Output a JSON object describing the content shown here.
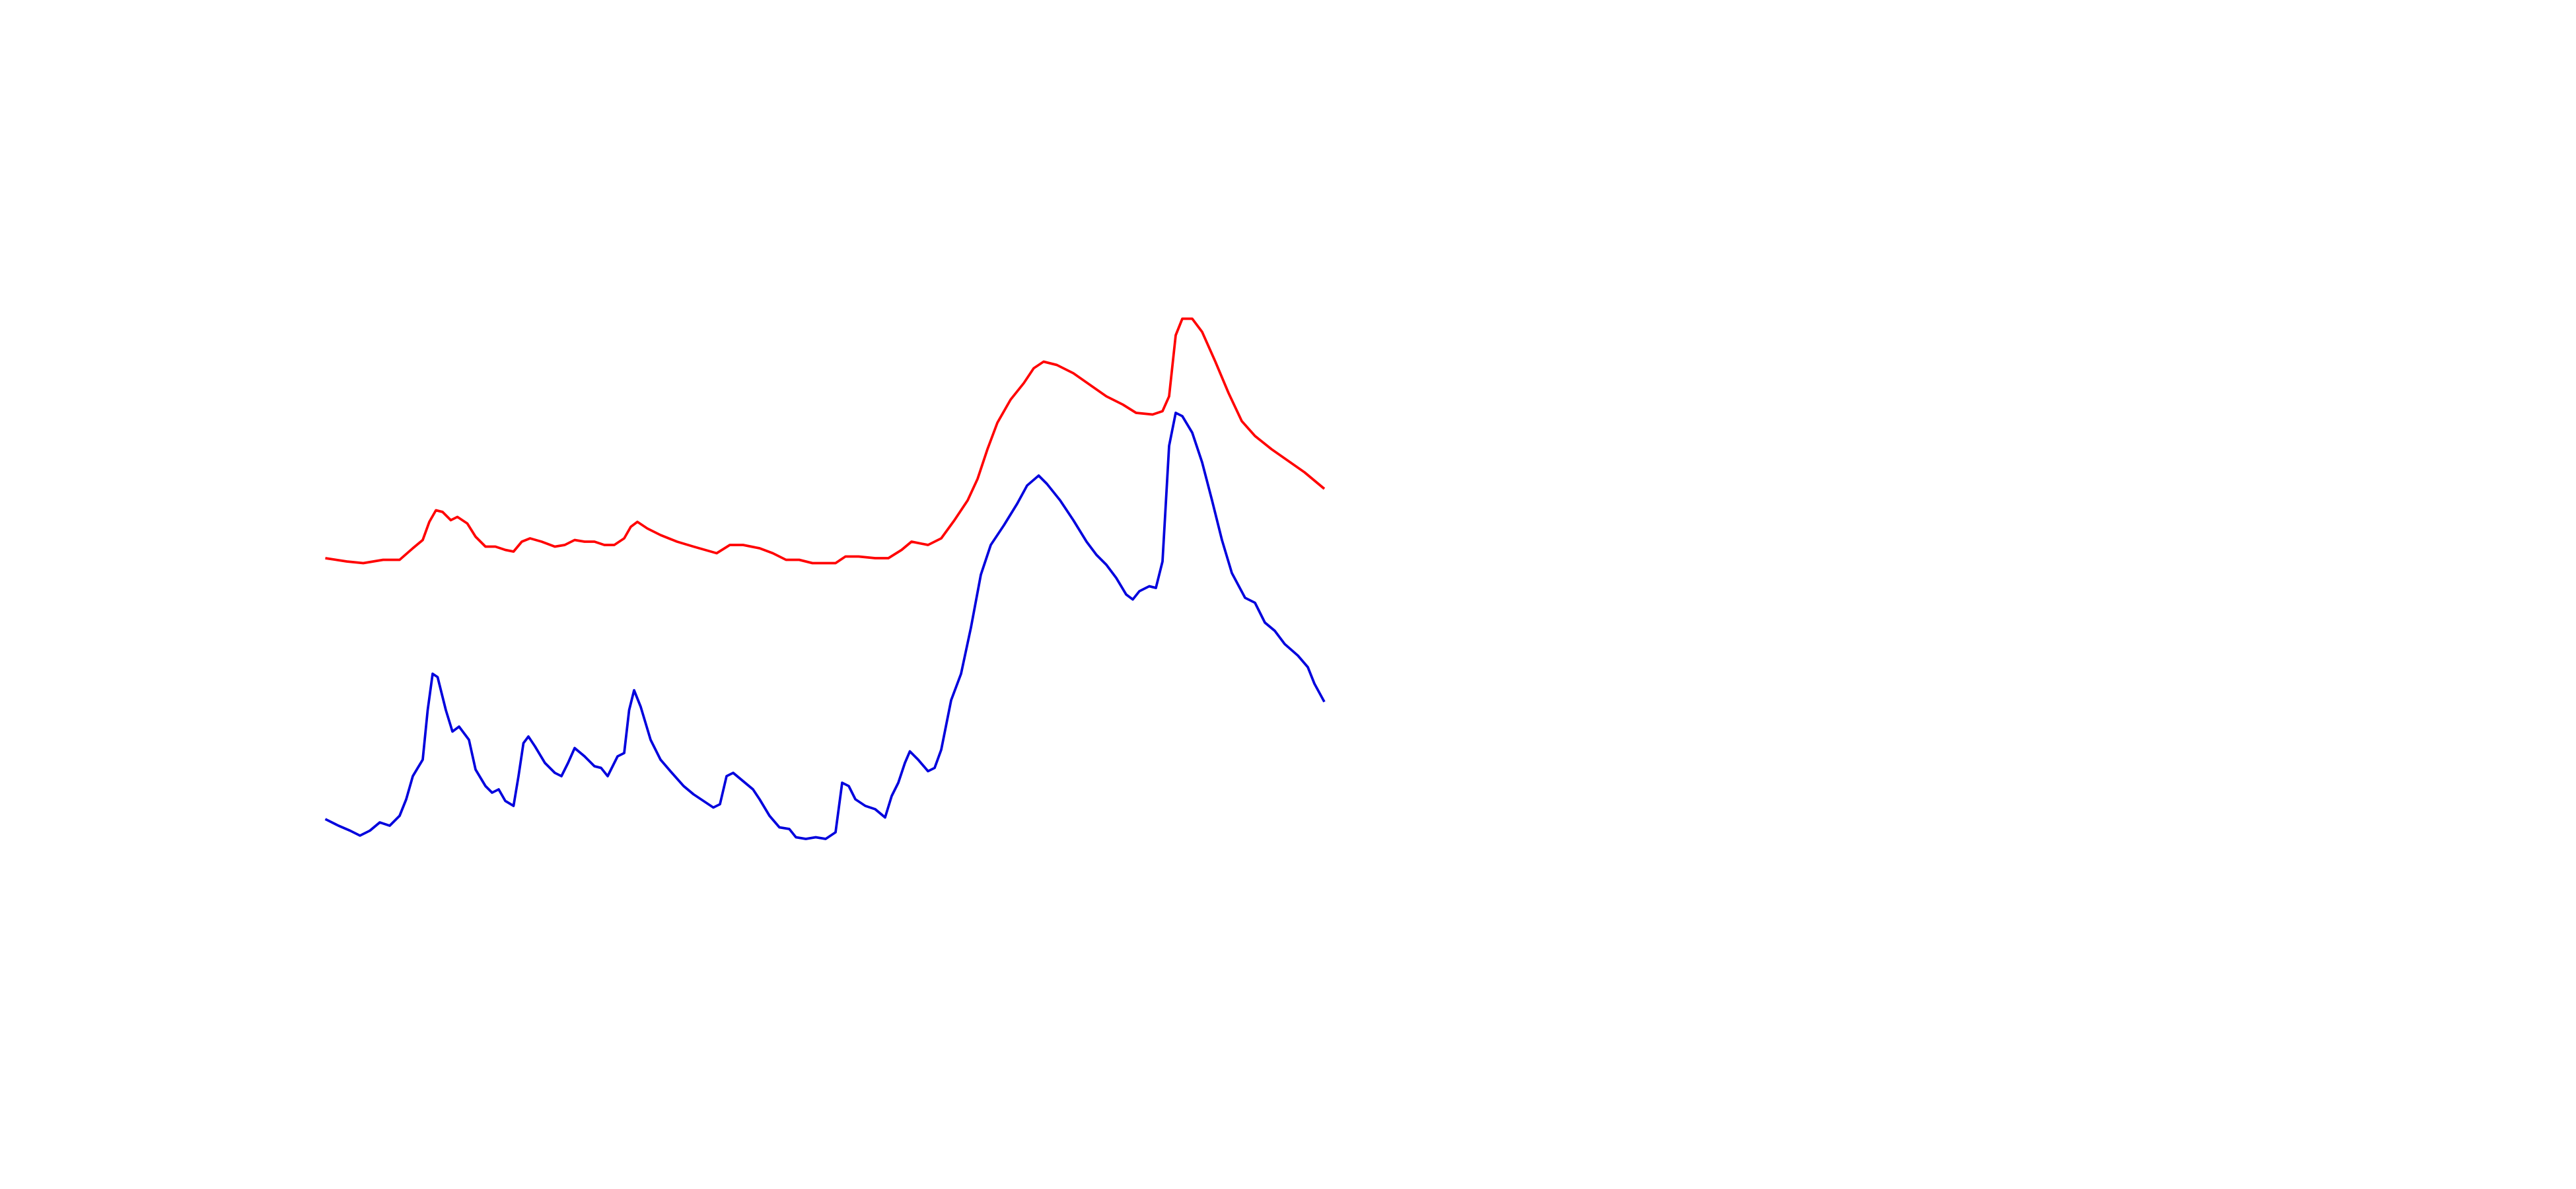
{
  "chart_data": {
    "type": "line",
    "xlim": [
      0,
      1560
    ],
    "ylim": [
      0,
      720
    ],
    "series": [
      {
        "color": "#ff0000",
        "x": [
          197,
          210,
          220,
          232,
          242,
          250,
          256,
          260,
          264,
          268,
          273,
          277,
          283,
          288,
          294,
          300,
          306,
          311,
          316,
          321,
          328,
          336,
          342,
          348,
          354,
          360,
          366,
          372,
          378,
          382,
          386,
          392,
          400,
          410,
          420,
          434,
          442,
          450,
          460,
          468,
          476,
          484,
          492,
          500,
          506,
          512,
          520,
          530,
          538,
          546,
          552,
          562,
          570,
          578,
          586,
          592,
          598,
          604,
          612,
          620,
          626,
          632,
          640,
          650,
          660,
          670,
          680,
          688,
          698,
          704,
          708,
          712,
          716,
          722,
          728,
          736,
          744,
          752,
          760,
          770,
          780,
          790,
          802
        ],
        "values": [
          382,
          380,
          379,
          381,
          381,
          388,
          393,
          404,
          411,
          410,
          405,
          407,
          403,
          395,
          389,
          389,
          387,
          386,
          392,
          394,
          392,
          389,
          390,
          393,
          392,
          392,
          390,
          390,
          394,
          401,
          404,
          400,
          396,
          392,
          389,
          385,
          390,
          390,
          388,
          385,
          381,
          381,
          379,
          379,
          379,
          383,
          383,
          382,
          382,
          387,
          392,
          390,
          394,
          405,
          417,
          430,
          448,
          464,
          478,
          488,
          497,
          501,
          499,
          494,
          487,
          480,
          475,
          470,
          469,
          471,
          480,
          517,
          527,
          527,
          519,
          501,
          482,
          465,
          456,
          448,
          441,
          434,
          424
        ]
      },
      {
        "color": "#0000dd",
        "x": [
          197,
          205,
          212,
          218,
          224,
          230,
          236,
          242,
          246,
          250,
          256,
          259,
          262,
          265,
          270,
          274,
          278,
          284,
          288,
          294,
          298,
          302,
          306,
          311,
          314,
          317,
          320,
          324,
          330,
          336,
          340,
          344,
          348,
          354,
          360,
          364,
          368,
          374,
          378,
          381,
          384,
          388,
          394,
          400,
          406,
          414,
          420,
          426,
          432,
          436,
          440,
          444,
          450,
          456,
          460,
          466,
          472,
          478,
          482,
          488,
          494,
          500,
          506,
          510,
          514,
          518,
          524,
          530,
          536,
          540,
          544,
          548,
          551,
          556,
          562,
          566,
          570,
          576,
          582,
          588,
          594,
          600,
          608,
          616,
          622,
          629,
          634,
          642,
          650,
          658,
          664,
          670,
          676,
          682,
          686,
          690,
          696,
          700,
          704,
          708,
          712,
          716,
          722,
          728,
          734,
          740,
          746,
          754,
          760,
          766,
          772,
          778,
          786,
          792,
          796,
          802
        ],
        "values": [
          224,
          220,
          217,
          214,
          217,
          222,
          220,
          226,
          236,
          250,
          260,
          290,
          312,
          310,
          290,
          277,
          280,
          272,
          254,
          244,
          240,
          242,
          235,
          232,
          250,
          270,
          274,
          268,
          258,
          252,
          250,
          258,
          267,
          262,
          256,
          255,
          250,
          262,
          264,
          290,
          302,
          292,
          272,
          260,
          253,
          244,
          239,
          235,
          231,
          233,
          250,
          252,
          247,
          242,
          236,
          226,
          219,
          218,
          213,
          212,
          213,
          212,
          216,
          246,
          244,
          236,
          232,
          230,
          225,
          238,
          246,
          258,
          265,
          260,
          253,
          255,
          266,
          296,
          312,
          340,
          372,
          390,
          402,
          415,
          426,
          432,
          427,
          417,
          405,
          392,
          384,
          378,
          370,
          360,
          357,
          362,
          365,
          364,
          380,
          450,
          470,
          468,
          458,
          440,
          417,
          393,
          373,
          358,
          355,
          343,
          338,
          330,
          323,
          316,
          306,
          295
        ]
      }
    ]
  }
}
